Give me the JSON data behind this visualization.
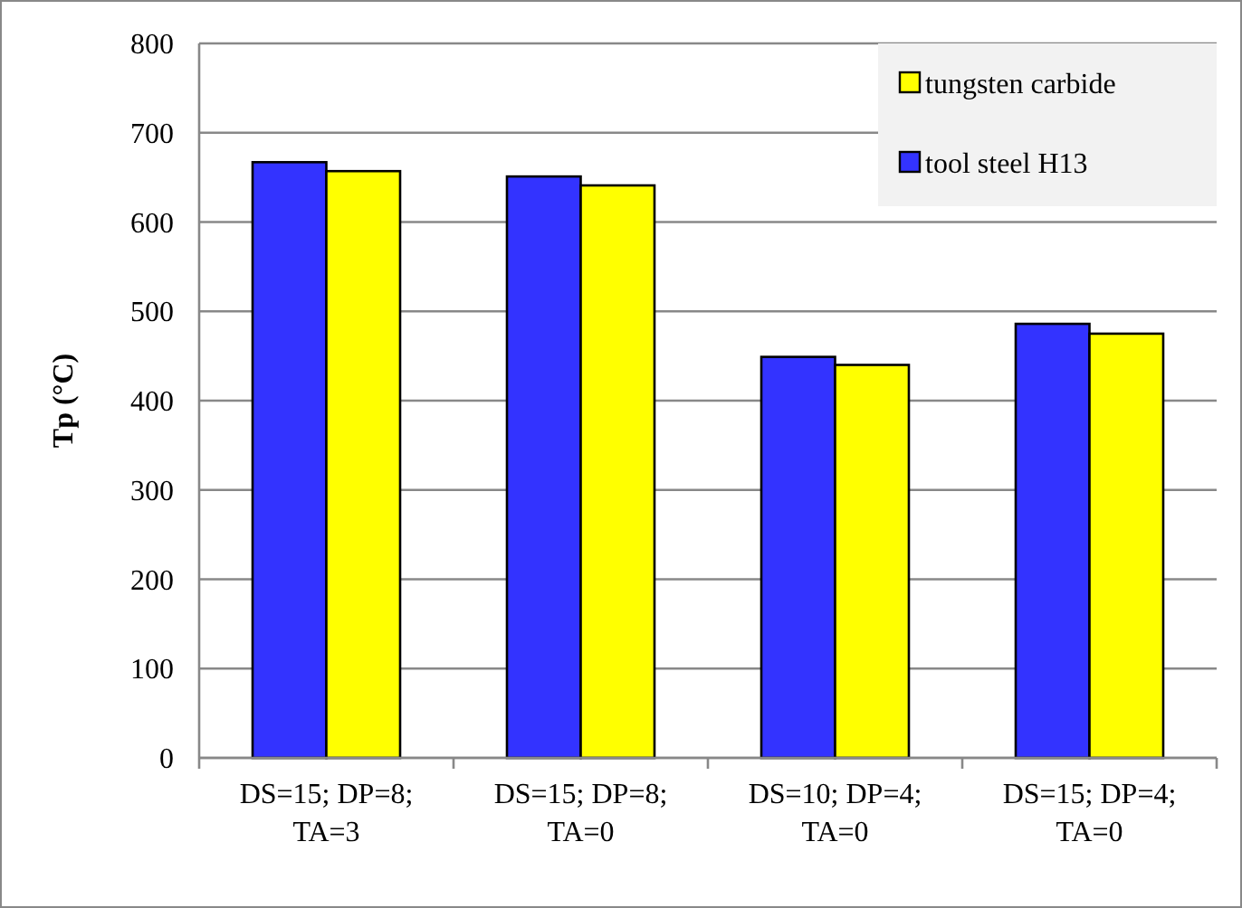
{
  "chart_data": {
    "type": "bar",
    "ylabel": "Tp (°C)",
    "categories": [
      "DS=15; DP=8; TA=3",
      "DS=15; DP=8; TA=0",
      "DS=10; DP=4; TA=0",
      "DS=15; DP=4; TA=0"
    ],
    "series": [
      {
        "name": "tool steel H13",
        "color": "#3333ff",
        "values": [
          667,
          651,
          449,
          486
        ]
      },
      {
        "name": "tungsten carbide",
        "color": "#ffff00",
        "values": [
          657,
          641,
          440,
          475
        ]
      }
    ],
    "ylim": [
      0,
      800
    ],
    "yticks": [
      0,
      100,
      200,
      300,
      400,
      500,
      600,
      700,
      800
    ],
    "grid": "y",
    "legend": "top right"
  }
}
